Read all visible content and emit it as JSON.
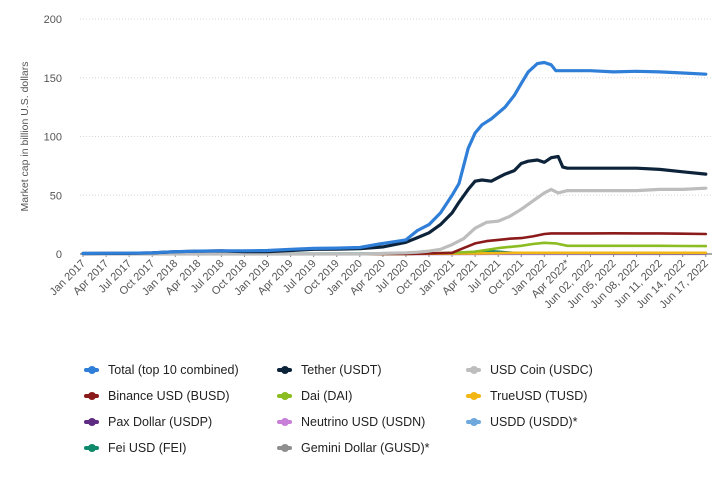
{
  "chart_data": {
    "type": "line",
    "title": "",
    "xlabel": "",
    "ylabel": "Market cap in billion U.S. dollars",
    "ylim": [
      0,
      200
    ],
    "yticks": [
      0,
      50,
      100,
      150,
      200
    ],
    "grid": true,
    "legend_position": "bottom",
    "x_tick_labels": [
      "Jan 2017",
      "Apr 2017",
      "Jul 2017",
      "Oct 2017",
      "Jan 2018",
      "Apr 2018",
      "Jul 2018",
      "Oct 2018",
      "Jan 2019",
      "Apr 2019",
      "Jul 2019",
      "Oct 2019",
      "Jan 2020",
      "Apr 2020",
      "Jul 2020",
      "Oct 2020",
      "Jan 2021",
      "Apr 2021",
      "Jul 2021",
      "Oct 2021",
      "Jan 2022",
      "Apr 2022*",
      "Jun 02, 2022",
      "Jun 05, 2022",
      "Jun 08, 2022",
      "Jun 11, 2022",
      "Jun 14, 2022",
      "Jun 17, 2022"
    ],
    "series": [
      {
        "name": "Total (top 10 combined)",
        "color": "#2f7ed8",
        "values": [
          [
            0,
            0.5
          ],
          [
            1,
            0.6
          ],
          [
            2,
            0.7
          ],
          [
            3,
            1
          ],
          [
            4,
            2
          ],
          [
            5,
            2.5
          ],
          [
            6,
            2.7
          ],
          [
            7,
            2.7
          ],
          [
            8,
            3
          ],
          [
            9,
            4
          ],
          [
            10,
            4.8
          ],
          [
            11,
            5
          ],
          [
            12,
            5.5
          ],
          [
            13,
            9
          ],
          [
            14,
            12
          ],
          [
            14.5,
            20
          ],
          [
            15,
            25
          ],
          [
            15.5,
            35
          ],
          [
            16,
            50
          ],
          [
            16.3,
            60
          ],
          [
            16.7,
            90
          ],
          [
            17,
            103
          ],
          [
            17.3,
            110
          ],
          [
            17.7,
            115
          ],
          [
            18,
            120
          ],
          [
            18.3,
            125
          ],
          [
            18.7,
            135
          ],
          [
            19,
            145
          ],
          [
            19.3,
            155
          ],
          [
            19.7,
            162
          ],
          [
            20,
            163
          ],
          [
            20.3,
            161
          ],
          [
            20.5,
            156
          ],
          [
            21,
            156
          ],
          [
            22,
            156
          ],
          [
            23,
            155
          ],
          [
            24,
            155.5
          ],
          [
            25,
            155
          ],
          [
            26,
            154
          ],
          [
            27,
            153
          ]
        ]
      },
      {
        "name": "Tether (USDT)",
        "color": "#0d233a",
        "values": [
          [
            0,
            0.4
          ],
          [
            1,
            0.5
          ],
          [
            2,
            0.6
          ],
          [
            3,
            0.9
          ],
          [
            4,
            2
          ],
          [
            5,
            2.4
          ],
          [
            6,
            2.6
          ],
          [
            7,
            2
          ],
          [
            8,
            2
          ],
          [
            9,
            3
          ],
          [
            10,
            4
          ],
          [
            11,
            4.2
          ],
          [
            12,
            4.6
          ],
          [
            13,
            6
          ],
          [
            14,
            10
          ],
          [
            14.5,
            14
          ],
          [
            15,
            18
          ],
          [
            15.5,
            25
          ],
          [
            16,
            35
          ],
          [
            16.3,
            44
          ],
          [
            16.7,
            55
          ],
          [
            17,
            62
          ],
          [
            17.3,
            63
          ],
          [
            17.7,
            62
          ],
          [
            18,
            65
          ],
          [
            18.3,
            68
          ],
          [
            18.7,
            71
          ],
          [
            19,
            77
          ],
          [
            19.3,
            79
          ],
          [
            19.7,
            80
          ],
          [
            20,
            78
          ],
          [
            20.3,
            82
          ],
          [
            20.6,
            83
          ],
          [
            20.8,
            74
          ],
          [
            21,
            73
          ],
          [
            22,
            73
          ],
          [
            23,
            73
          ],
          [
            24,
            73
          ],
          [
            25,
            72
          ],
          [
            26,
            70
          ],
          [
            27,
            68
          ]
        ]
      },
      {
        "name": "USD Coin (USDC)",
        "color": "#bdbdbd",
        "values": [
          [
            0,
            0
          ],
          [
            12,
            0
          ],
          [
            13,
            0.5
          ],
          [
            14,
            1
          ],
          [
            14.5,
            1.5
          ],
          [
            15,
            2.5
          ],
          [
            15.5,
            4
          ],
          [
            16,
            8
          ],
          [
            16.5,
            13
          ],
          [
            17,
            22
          ],
          [
            17.5,
            27
          ],
          [
            18,
            28
          ],
          [
            18.5,
            32
          ],
          [
            19,
            38
          ],
          [
            19.5,
            45
          ],
          [
            20,
            52
          ],
          [
            20.3,
            55
          ],
          [
            20.6,
            52
          ],
          [
            21,
            54
          ],
          [
            22,
            54
          ],
          [
            23,
            54
          ],
          [
            24,
            54
          ],
          [
            25,
            55
          ],
          [
            26,
            55
          ],
          [
            27,
            56
          ]
        ]
      },
      {
        "name": "Binance USD (BUSD)",
        "color": "#8b1a1a",
        "values": [
          [
            0,
            0
          ],
          [
            14,
            0
          ],
          [
            15,
            0.5
          ],
          [
            16,
            1
          ],
          [
            16.5,
            5
          ],
          [
            17,
            9
          ],
          [
            17.5,
            11
          ],
          [
            18,
            12
          ],
          [
            18.5,
            13
          ],
          [
            19,
            13.5
          ],
          [
            19.5,
            15
          ],
          [
            20,
            17
          ],
          [
            20.3,
            17.5
          ],
          [
            21,
            17.5
          ],
          [
            22,
            17.5
          ],
          [
            23,
            17.6
          ],
          [
            24,
            17.5
          ],
          [
            25,
            17.5
          ],
          [
            26,
            17.3
          ],
          [
            27,
            17
          ]
        ]
      },
      {
        "name": "Dai (DAI)",
        "color": "#8bbc21",
        "values": [
          [
            0,
            0
          ],
          [
            14,
            0
          ],
          [
            16,
            1
          ],
          [
            17,
            2
          ],
          [
            18,
            5
          ],
          [
            18.5,
            6
          ],
          [
            19,
            7
          ],
          [
            19.5,
            8.5
          ],
          [
            20,
            9.5
          ],
          [
            20.5,
            9
          ],
          [
            21,
            7
          ],
          [
            22,
            7
          ],
          [
            23,
            7
          ],
          [
            24,
            7
          ],
          [
            25,
            7
          ],
          [
            26,
            6.8
          ],
          [
            27,
            6.7
          ]
        ]
      },
      {
        "name": "TrueUSD (TUSD)",
        "color": "#f2b615",
        "values": [
          [
            0,
            0
          ],
          [
            14,
            0.2
          ],
          [
            17,
            0.5
          ],
          [
            19,
            1
          ],
          [
            21,
            1
          ],
          [
            27,
            1
          ]
        ]
      },
      {
        "name": "Pax Dollar (USDP)",
        "color": "#5e2c82",
        "values": [
          [
            0,
            0
          ],
          [
            14,
            0.2
          ],
          [
            17,
            0.5
          ],
          [
            19,
            0.9
          ],
          [
            21,
            0.9
          ],
          [
            27,
            0.8
          ]
        ]
      },
      {
        "name": "Neutrino USD (USDN)",
        "color": "#c77fd8",
        "values": [
          [
            0,
            0
          ],
          [
            16,
            0.1
          ],
          [
            19,
            0.4
          ],
          [
            21,
            0.5
          ],
          [
            27,
            0.5
          ]
        ]
      },
      {
        "name": "USDD (USDD)*",
        "color": "#6fa8dc",
        "values": [
          [
            0,
            0
          ],
          [
            21,
            0.3
          ],
          [
            24,
            0.7
          ],
          [
            27,
            0.7
          ]
        ]
      },
      {
        "name": "Fei USD (FEI)",
        "color": "#0e8a6a",
        "values": [
          [
            0,
            0
          ],
          [
            16.5,
            0.5
          ],
          [
            17,
            2
          ],
          [
            17.5,
            2.5
          ],
          [
            18,
            2
          ],
          [
            19,
            0.5
          ],
          [
            21,
            0.4
          ],
          [
            27,
            0.4
          ]
        ]
      },
      {
        "name": "Gemini Dollar (GUSD)*",
        "color": "#8f8f8f",
        "values": [
          [
            0,
            0
          ],
          [
            17,
            0.2
          ],
          [
            21,
            0.2
          ],
          [
            27,
            0.2
          ]
        ]
      }
    ]
  },
  "legend": [
    {
      "label": "Total (top 10 combined)",
      "color": "#2f7ed8"
    },
    {
      "label": "Tether (USDT)",
      "color": "#0d233a"
    },
    {
      "label": "USD Coin (USDC)",
      "color": "#bdbdbd"
    },
    {
      "label": "Binance USD (BUSD)",
      "color": "#8b1a1a"
    },
    {
      "label": "Dai (DAI)",
      "color": "#8bbc21"
    },
    {
      "label": "TrueUSD (TUSD)",
      "color": "#f2b615"
    },
    {
      "label": "Pax Dollar (USDP)",
      "color": "#5e2c82"
    },
    {
      "label": "Neutrino USD (USDN)",
      "color": "#c77fd8"
    },
    {
      "label": "USDD (USDD)*",
      "color": "#6fa8dc"
    },
    {
      "label": "Fei USD (FEI)",
      "color": "#0e8a6a"
    },
    {
      "label": "Gemini Dollar (GUSD)*",
      "color": "#8f8f8f"
    }
  ]
}
